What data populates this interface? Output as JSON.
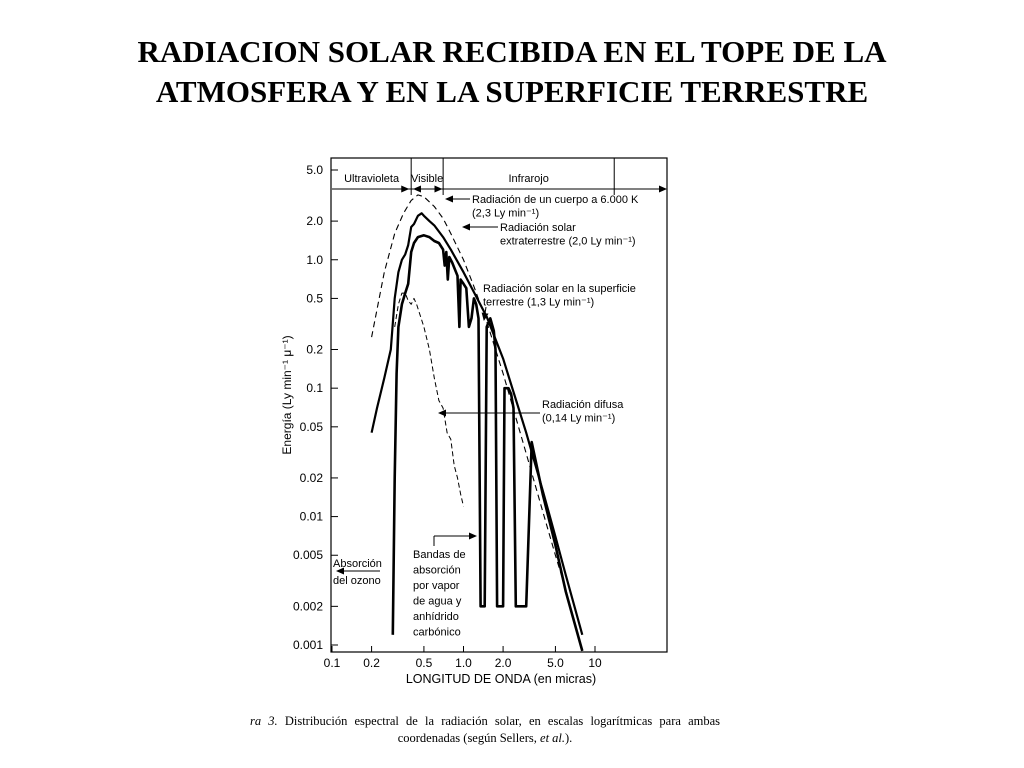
{
  "slide": {
    "title_line1": "RADIACION SOLAR RECIBIDA EN EL TOPE DE LA",
    "title_line2": "ATMOSFERA Y EN LA SUPERFICIE TERRESTRE"
  },
  "caption": {
    "prefix": "ra 3.",
    "text_part1": "Distribución espectral de la radiación solar, en escalas logarítmicas para ambas coordenadas (según Sellers, ",
    "italic": "et al.",
    "text_part2": ")."
  },
  "chart_data": {
    "type": "line",
    "xlabel": "LONGITUD DE ONDA (en micras)",
    "ylabel": "Energía (Ly min⁻¹ μ⁻¹)",
    "x_scale": "log",
    "y_scale": "log",
    "xlim": [
      0.1,
      14
    ],
    "ylim": [
      0.001,
      5.0
    ],
    "x_ticks": [
      {
        "value": 0.1,
        "label": "0.1"
      },
      {
        "value": 0.2,
        "label": "0.2"
      },
      {
        "value": 0.5,
        "label": "0.5"
      },
      {
        "value": 1.0,
        "label": "1.0"
      },
      {
        "value": 2.0,
        "label": "2.0"
      },
      {
        "value": 5.0,
        "label": "5.0"
      },
      {
        "value": 10,
        "label": "10"
      }
    ],
    "y_ticks": [
      {
        "value": 5.0,
        "label": "5.0"
      },
      {
        "value": 2.0,
        "label": "2.0"
      },
      {
        "value": 1.0,
        "label": "1.0"
      },
      {
        "value": 0.5,
        "label": "0.5"
      },
      {
        "value": 0.2,
        "label": "0.2"
      },
      {
        "value": 0.1,
        "label": "0.1"
      },
      {
        "value": 0.05,
        "label": "0.05"
      },
      {
        "value": 0.02,
        "label": "0.02"
      },
      {
        "value": 0.01,
        "label": "0.01"
      },
      {
        "value": 0.005,
        "label": "0.005"
      },
      {
        "value": 0.002,
        "label": "0.002"
      },
      {
        "value": 0.001,
        "label": "0.001"
      }
    ],
    "regions": [
      {
        "label": "Ultravioleta",
        "from": 0.1,
        "to": 0.4
      },
      {
        "label": "Visible",
        "from": 0.4,
        "to": 0.7
      },
      {
        "label": "Infrarojo",
        "from": 0.7,
        "to": 14
      }
    ],
    "series": [
      {
        "label_lines": [
          "Radiación de un cuerpo a 6.000 K",
          "(2,3 Ly min⁻¹)"
        ],
        "style": "dashed",
        "points": [
          [
            0.2,
            0.25
          ],
          [
            0.25,
            0.8
          ],
          [
            0.3,
            1.6
          ],
          [
            0.35,
            2.3
          ],
          [
            0.4,
            2.9
          ],
          [
            0.45,
            3.2
          ],
          [
            0.5,
            3.1
          ],
          [
            0.6,
            2.6
          ],
          [
            0.7,
            2.1
          ],
          [
            0.8,
            1.6
          ],
          [
            1.0,
            1.0
          ],
          [
            1.2,
            0.62
          ],
          [
            1.5,
            0.33
          ],
          [
            2.0,
            0.13
          ],
          [
            3.0,
            0.031
          ],
          [
            4.0,
            0.011
          ],
          [
            5.0,
            0.005
          ],
          [
            6.0,
            0.0027
          ],
          [
            8.0,
            0.0009
          ]
        ]
      },
      {
        "label_lines": [
          "Radiación solar",
          "extraterrestre (2,0 Ly min⁻¹)"
        ],
        "style": "solid-medium",
        "points": [
          [
            0.2,
            0.045
          ],
          [
            0.22,
            0.07
          ],
          [
            0.25,
            0.12
          ],
          [
            0.28,
            0.2
          ],
          [
            0.3,
            0.5
          ],
          [
            0.32,
            0.8
          ],
          [
            0.34,
            1.0
          ],
          [
            0.36,
            1.1
          ],
          [
            0.38,
            1.3
          ],
          [
            0.4,
            1.8
          ],
          [
            0.42,
            1.9
          ],
          [
            0.45,
            2.2
          ],
          [
            0.48,
            2.3
          ],
          [
            0.5,
            2.2
          ],
          [
            0.55,
            2.0
          ],
          [
            0.6,
            1.85
          ],
          [
            0.7,
            1.5
          ],
          [
            0.8,
            1.2
          ],
          [
            1.0,
            0.8
          ],
          [
            1.2,
            0.56
          ],
          [
            1.5,
            0.36
          ],
          [
            2.0,
            0.17
          ],
          [
            3.0,
            0.045
          ],
          [
            4.0,
            0.016
          ],
          [
            5.0,
            0.007
          ],
          [
            6.0,
            0.0035
          ],
          [
            8.0,
            0.0012
          ]
        ]
      },
      {
        "label_lines": [
          "Radiación solar en la superficie",
          "terrestre (1,3 Ly min⁻¹)"
        ],
        "style": "solid-thick",
        "points": [
          [
            0.29,
            0.0012
          ],
          [
            0.3,
            0.02
          ],
          [
            0.31,
            0.13
          ],
          [
            0.32,
            0.3
          ],
          [
            0.34,
            0.45
          ],
          [
            0.36,
            0.55
          ],
          [
            0.38,
            0.65
          ],
          [
            0.4,
            1.15
          ],
          [
            0.42,
            1.35
          ],
          [
            0.45,
            1.5
          ],
          [
            0.5,
            1.55
          ],
          [
            0.55,
            1.5
          ],
          [
            0.6,
            1.4
          ],
          [
            0.65,
            1.35
          ],
          [
            0.7,
            1.2
          ],
          [
            0.72,
            0.9
          ],
          [
            0.74,
            1.15
          ],
          [
            0.76,
            0.7
          ],
          [
            0.78,
            1.05
          ],
          [
            0.82,
            0.95
          ],
          [
            0.9,
            0.75
          ],
          [
            0.93,
            0.3
          ],
          [
            0.95,
            0.7
          ],
          [
            1.0,
            0.65
          ],
          [
            1.05,
            0.6
          ],
          [
            1.1,
            0.3
          ],
          [
            1.15,
            0.35
          ],
          [
            1.2,
            0.5
          ],
          [
            1.25,
            0.45
          ],
          [
            1.3,
            0.35
          ],
          [
            1.35,
            0.002
          ],
          [
            1.45,
            0.002
          ],
          [
            1.5,
            0.3
          ],
          [
            1.6,
            0.35
          ],
          [
            1.7,
            0.28
          ],
          [
            1.75,
            0.2
          ],
          [
            1.8,
            0.002
          ],
          [
            2.0,
            0.002
          ],
          [
            2.05,
            0.1
          ],
          [
            2.2,
            0.1
          ],
          [
            2.3,
            0.09
          ],
          [
            2.4,
            0.07
          ],
          [
            2.5,
            0.002
          ],
          [
            3.0,
            0.002
          ],
          [
            3.3,
            0.038
          ],
          [
            4.0,
            0.015
          ],
          [
            5.0,
            0.006
          ],
          [
            6.0,
            0.0026
          ],
          [
            8.0,
            0.0009
          ]
        ]
      },
      {
        "label_lines": [
          "Radiación difusa",
          "(0,14 Ly min⁻¹)"
        ],
        "style": "dashed-thin",
        "points": [
          [
            0.3,
            0.3
          ],
          [
            0.32,
            0.45
          ],
          [
            0.34,
            0.55
          ],
          [
            0.36,
            0.55
          ],
          [
            0.38,
            0.48
          ],
          [
            0.4,
            0.45
          ],
          [
            0.42,
            0.5
          ],
          [
            0.44,
            0.45
          ],
          [
            0.5,
            0.3
          ],
          [
            0.55,
            0.2
          ],
          [
            0.6,
            0.12
          ],
          [
            0.65,
            0.08
          ],
          [
            0.7,
            0.07
          ],
          [
            0.75,
            0.045
          ],
          [
            0.8,
            0.04
          ],
          [
            0.85,
            0.025
          ],
          [
            0.9,
            0.02
          ],
          [
            0.95,
            0.015
          ],
          [
            1.0,
            0.012
          ]
        ]
      }
    ],
    "annotations": [
      {
        "lines": [
          "Absorción",
          "del ozono"
        ]
      },
      {
        "lines": [
          "Bandas de",
          "absorción",
          "por vapor",
          "de agua y",
          "anhídrido",
          "carbónico"
        ]
      }
    ]
  }
}
